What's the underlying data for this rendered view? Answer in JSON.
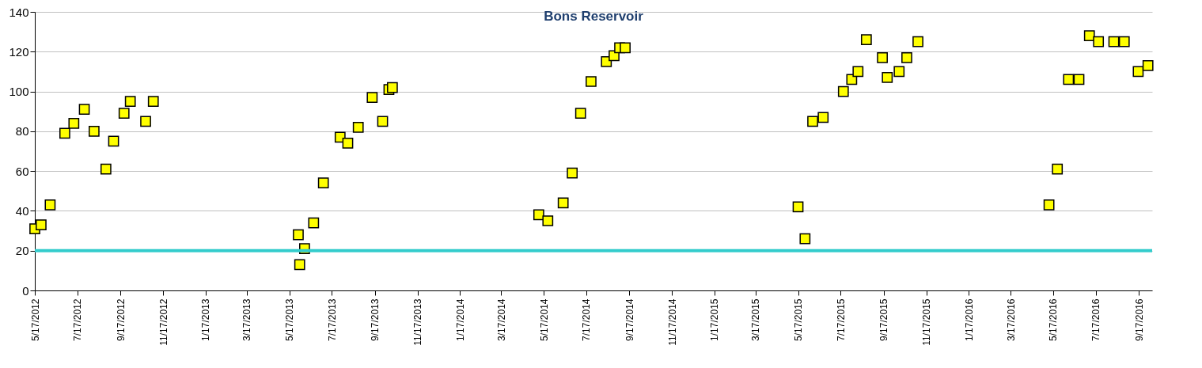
{
  "chart_data": {
    "type": "scatter",
    "title": "Bons Reservoir",
    "x": [
      "2012-05-17",
      "2012-05-26",
      "2012-06-08",
      "2012-06-29",
      "2012-07-12",
      "2012-07-27",
      "2012-08-10",
      "2012-08-27",
      "2012-09-07",
      "2012-09-22",
      "2012-10-01",
      "2012-10-23",
      "2012-11-03",
      "2013-05-30",
      "2013-06-01",
      "2013-06-08",
      "2013-06-21",
      "2013-07-05",
      "2013-07-29",
      "2013-08-09",
      "2013-08-24",
      "2013-09-13",
      "2013-09-28",
      "2013-10-07",
      "2013-10-12",
      "2014-05-10",
      "2014-05-23",
      "2014-06-14",
      "2014-06-27",
      "2014-07-09",
      "2014-07-24",
      "2014-08-15",
      "2014-08-26",
      "2014-09-03",
      "2014-09-11",
      "2015-05-17",
      "2015-05-27",
      "2015-06-07",
      "2015-06-22",
      "2015-07-21",
      "2015-08-02",
      "2015-08-11",
      "2015-08-23",
      "2015-09-15",
      "2015-09-22",
      "2015-10-09",
      "2015-10-20",
      "2015-11-05",
      "2016-05-11",
      "2016-05-23",
      "2016-06-08",
      "2016-06-23",
      "2016-07-08",
      "2016-07-21",
      "2016-08-12",
      "2016-08-27",
      "2016-09-16",
      "2016-09-30"
    ],
    "series": [
      {
        "color": "#ffff00",
        "values": [
          31,
          33,
          43,
          79,
          84,
          91,
          80,
          61,
          75,
          89,
          95,
          85,
          95,
          28,
          13,
          21,
          34,
          54,
          77,
          74,
          82,
          97,
          85,
          101,
          102,
          38,
          35,
          44,
          59,
          89,
          105,
          115,
          118,
          122,
          122,
          42,
          26,
          85,
          87,
          100,
          106,
          110,
          126,
          117,
          107,
          110,
          117,
          125,
          43,
          61,
          106,
          106,
          128,
          125,
          125,
          125,
          110,
          113
        ]
      }
    ],
    "marker": "square",
    "grid": "y",
    "xlim": [
      "2012-05-17",
      "2016-10-06"
    ],
    "xticks": [
      {
        "value": "2012-05-17",
        "label": "5/17/2012"
      },
      {
        "value": "2012-07-17",
        "label": "7/17/2012"
      },
      {
        "value": "2012-09-17",
        "label": "9/17/2012"
      },
      {
        "value": "2012-11-17",
        "label": "11/17/2012"
      },
      {
        "value": "2013-01-17",
        "label": "1/17/2013"
      },
      {
        "value": "2013-03-17",
        "label": "3/17/2013"
      },
      {
        "value": "2013-05-17",
        "label": "5/17/2013"
      },
      {
        "value": "2013-07-17",
        "label": "7/17/2013"
      },
      {
        "value": "2013-09-17",
        "label": "9/17/2013"
      },
      {
        "value": "2013-11-17",
        "label": "11/17/2013"
      },
      {
        "value": "2014-01-17",
        "label": "1/17/2014"
      },
      {
        "value": "2014-03-17",
        "label": "3/17/2014"
      },
      {
        "value": "2014-05-17",
        "label": "5/17/2014"
      },
      {
        "value": "2014-07-17",
        "label": "7/17/2014"
      },
      {
        "value": "2014-09-17",
        "label": "9/17/2014"
      },
      {
        "value": "2014-11-17",
        "label": "11/17/2014"
      },
      {
        "value": "2015-01-17",
        "label": "1/17/2015"
      },
      {
        "value": "2015-03-17",
        "label": "3/17/2015"
      },
      {
        "value": "2015-05-17",
        "label": "5/17/2015"
      },
      {
        "value": "2015-07-17",
        "label": "7/17/2015"
      },
      {
        "value": "2015-09-17",
        "label": "9/17/2015"
      },
      {
        "value": "2015-11-17",
        "label": "11/17/2015"
      },
      {
        "value": "2016-01-17",
        "label": "1/17/2016"
      },
      {
        "value": "2016-03-17",
        "label": "3/17/2016"
      },
      {
        "value": "2016-05-17",
        "label": "5/17/2016"
      },
      {
        "value": "2016-07-17",
        "label": "7/17/2016"
      },
      {
        "value": "2016-09-17",
        "label": "9/17/2016"
      }
    ],
    "ylim": [
      0,
      140
    ],
    "yticks": [
      0,
      20,
      40,
      60,
      80,
      100,
      120,
      140
    ],
    "ref_lines": [
      {
        "axis": "y",
        "value": 20,
        "color": "#33cccc"
      }
    ]
  }
}
